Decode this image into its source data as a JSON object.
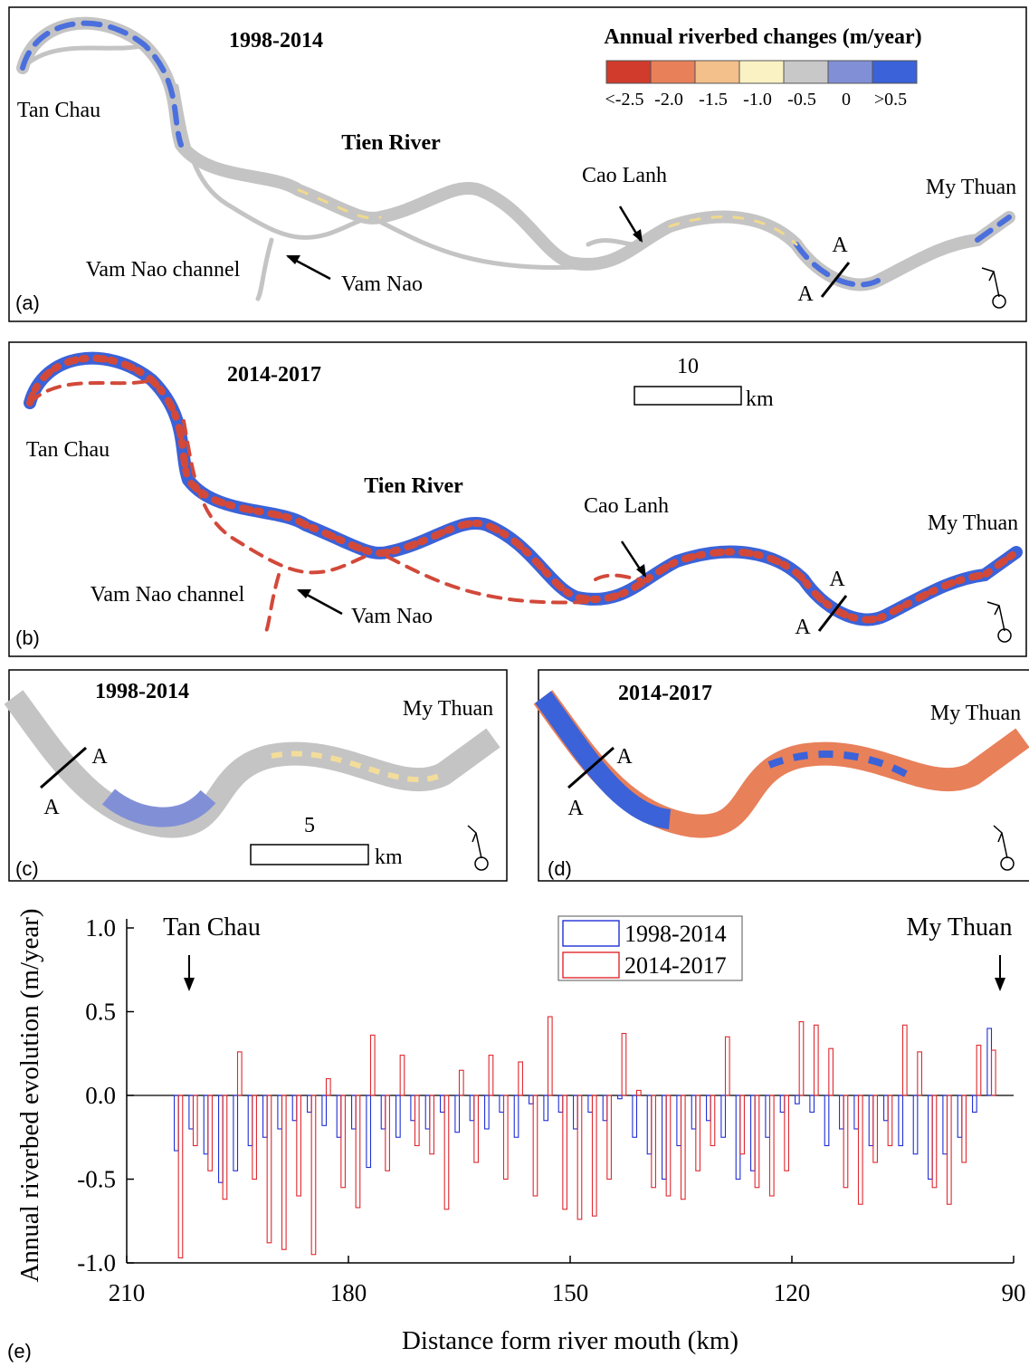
{
  "map_panels": [
    {
      "label": "(a)",
      "period": "1998-2014",
      "river": "Tien River",
      "places": [
        "Tan Chau",
        "Vam Nao channel",
        "Vam Nao",
        "Cao Lanh",
        "My Thuan"
      ],
      "section_labels": [
        "A",
        "A"
      ]
    },
    {
      "label": "(b)",
      "period": "2014-2017",
      "river": "Tien River",
      "places": [
        "Tan Chau",
        "Vam Nao channel",
        "Vam Nao",
        "Cao Lanh",
        "My Thuan"
      ],
      "section_labels": [
        "A",
        "A"
      ],
      "scale": {
        "value": 10,
        "unit": "km"
      }
    },
    {
      "label": "(c)",
      "period": "1998-2014",
      "places": [
        "My Thuan"
      ],
      "section_labels": [
        "A",
        "A"
      ],
      "scale": {
        "value": 5,
        "unit": "km"
      }
    },
    {
      "label": "(d)",
      "period": "2014-2017",
      "places": [
        "My Thuan"
      ],
      "section_labels": [
        "A",
        "A"
      ]
    }
  ],
  "legend": {
    "title": "Annual riverbed changes (m/year)",
    "labels": [
      "<-2.5",
      "-2.0",
      "-1.5",
      "-1.0",
      "-0.5",
      "0",
      ">0.5"
    ],
    "colors": [
      "#d03b2c",
      "#e8805a",
      "#f3bf8a",
      "#fbf2c3",
      "#c8c8c8",
      "#8190d6",
      "#3b62d8"
    ]
  },
  "chart_data": {
    "type": "bar",
    "panel_label": "(e)",
    "x_label": "Distance form river mouth (km)",
    "y_label": "Annual riverbed evolution (m/year)",
    "annotations": [
      "Tan Chau",
      "My Thuan"
    ],
    "x": [
      203,
      201,
      199,
      197,
      195,
      193,
      191,
      189,
      187,
      185,
      183,
      181,
      179,
      177,
      175,
      173,
      171,
      169,
      167,
      165,
      163,
      161,
      159,
      157,
      155,
      153,
      151,
      149,
      147,
      145,
      143,
      141,
      139,
      137,
      135,
      133,
      131,
      129,
      127,
      125,
      123,
      121,
      119,
      117,
      115,
      113,
      111,
      109,
      107,
      105,
      103,
      101,
      99,
      97,
      95,
      93
    ],
    "series": [
      {
        "name": "1998-2014",
        "color": "#1f2fd6",
        "values": [
          -0.33,
          -0.2,
          -0.35,
          -0.52,
          -0.45,
          -0.3,
          -0.25,
          -0.2,
          -0.15,
          -0.1,
          -0.18,
          -0.25,
          -0.2,
          -0.43,
          -0.2,
          -0.25,
          -0.15,
          -0.2,
          -0.1,
          -0.22,
          -0.15,
          -0.2,
          -0.1,
          -0.25,
          -0.05,
          -0.15,
          -0.1,
          -0.2,
          -0.1,
          -0.15,
          -0.02,
          -0.25,
          -0.35,
          -0.5,
          -0.3,
          -0.2,
          -0.15,
          -0.25,
          -0.5,
          -0.45,
          -0.25,
          -0.1,
          -0.05,
          -0.1,
          -0.3,
          -0.2,
          -0.2,
          -0.3,
          -0.15,
          -0.3,
          -0.35,
          -0.5,
          -0.35,
          -0.25,
          -0.1,
          0.4
        ]
      },
      {
        "name": "2014-2017",
        "color": "#e0282e",
        "values": [
          -0.97,
          -0.3,
          -0.45,
          -0.62,
          0.26,
          -0.5,
          -0.88,
          -0.92,
          -0.6,
          -0.95,
          0.1,
          -0.55,
          -0.67,
          0.36,
          -0.45,
          0.24,
          -0.3,
          -0.35,
          -0.68,
          0.15,
          -0.4,
          0.24,
          -0.5,
          0.2,
          -0.6,
          0.47,
          -0.68,
          -0.74,
          -0.72,
          -0.5,
          0.37,
          0.03,
          -0.55,
          -0.6,
          -0.62,
          -0.45,
          -0.3,
          0.35,
          -0.35,
          -0.55,
          -0.6,
          -0.45,
          0.44,
          0.42,
          0.28,
          -0.55,
          -0.65,
          -0.4,
          -0.3,
          0.42,
          0.26,
          -0.55,
          -0.65,
          -0.4,
          0.3,
          0.27
        ]
      }
    ],
    "xlim": [
      210,
      90
    ],
    "xticks": [
      210,
      180,
      150,
      120,
      90
    ],
    "ylim": [
      -1,
      1
    ],
    "yticks": [
      {
        "value": -1,
        "label": "-1.0"
      },
      {
        "value": -0.5,
        "label": "-0.5"
      },
      {
        "value": 0,
        "label": "0.0"
      },
      {
        "value": 0.5,
        "label": "0.5"
      },
      {
        "value": 1,
        "label": "1.0"
      }
    ]
  }
}
